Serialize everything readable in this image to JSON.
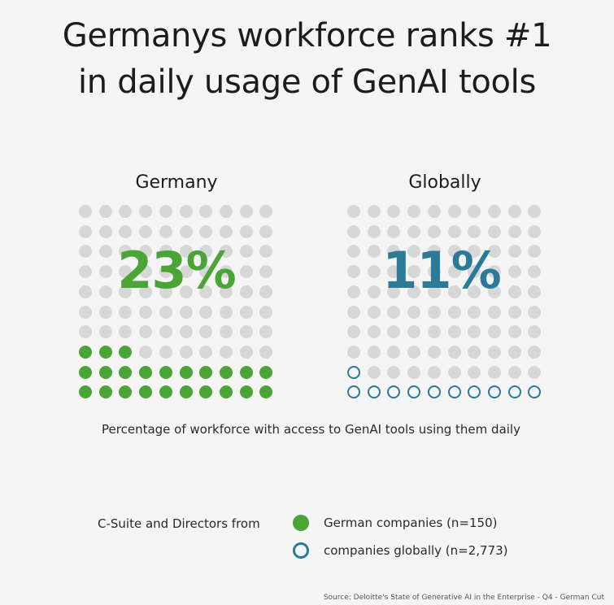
{
  "title_line1": "Germanys workforce ranks #1",
  "title_line2": "in daily usage of GenAI tools",
  "chart_data": {
    "type": "waffle",
    "grid": [
      10,
      10
    ],
    "panels": [
      {
        "name": "Germany",
        "value_label": "23%",
        "value": 23,
        "color": "#4aa536",
        "marker": "filled"
      },
      {
        "name": "Globally",
        "value_label": "11%",
        "value": 11,
        "color": "#2b7a98",
        "marker": "outline"
      }
    ],
    "empty_color": "#d7d7d7"
  },
  "caption": "Percentage of workforce with access to GenAI tools using them daily",
  "legend": {
    "intro": "C-Suite and Directors from",
    "items": [
      {
        "label": "German companies (n=150)",
        "color": "#4aa536",
        "marker": "filled"
      },
      {
        "label": "companies globally (n=2,773)",
        "color": "#2b7a98",
        "marker": "outline"
      }
    ]
  },
  "source": "Source: Deloitte's State of Generative AI in the Enterprise - Q4 - German Cut"
}
